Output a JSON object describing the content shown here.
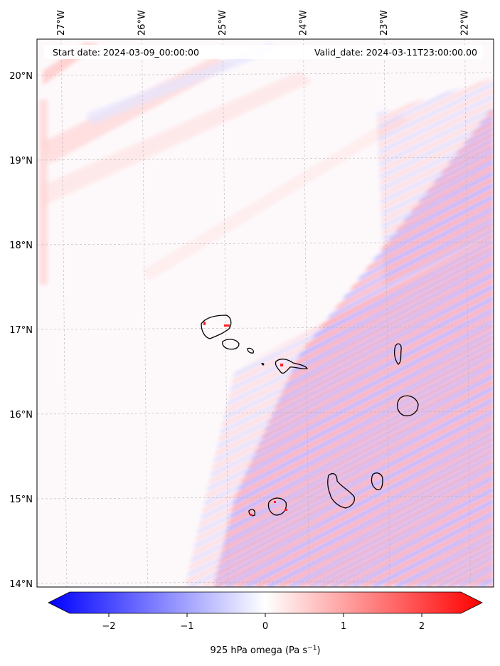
{
  "map": {
    "start_date_text": "Start date: 2024-03-09_00:00:00",
    "valid_date_text": "Valid_date: 2024-03-11T23:00:00.00",
    "lon_labels": [
      "27°W",
      "26°W",
      "25°W",
      "24°W",
      "23°W",
      "22°W"
    ],
    "lat_labels": [
      "20°N",
      "19°N",
      "18°N",
      "17°N",
      "16°N",
      "15°N",
      "14°N"
    ],
    "lon_values": [
      -27,
      -26,
      -25,
      -24,
      -23,
      -22
    ],
    "lat_values": [
      20,
      19,
      18,
      17,
      16,
      15,
      14
    ],
    "colors": {
      "negative": "#0000ff",
      "neutral": "#ffffff",
      "positive": "#ff0000",
      "coast": "#000000",
      "grid": "#b0b0b0"
    }
  },
  "colorbar": {
    "tick_labels": [
      "−2",
      "−1",
      "0",
      "1",
      "2"
    ],
    "tick_values": [
      -2,
      -1,
      0,
      1,
      2
    ],
    "range": [
      -2.5,
      2.5
    ],
    "label_main": "925 hPa omega (Pa s",
    "label_sup": "−1",
    "label_end": ")"
  }
}
